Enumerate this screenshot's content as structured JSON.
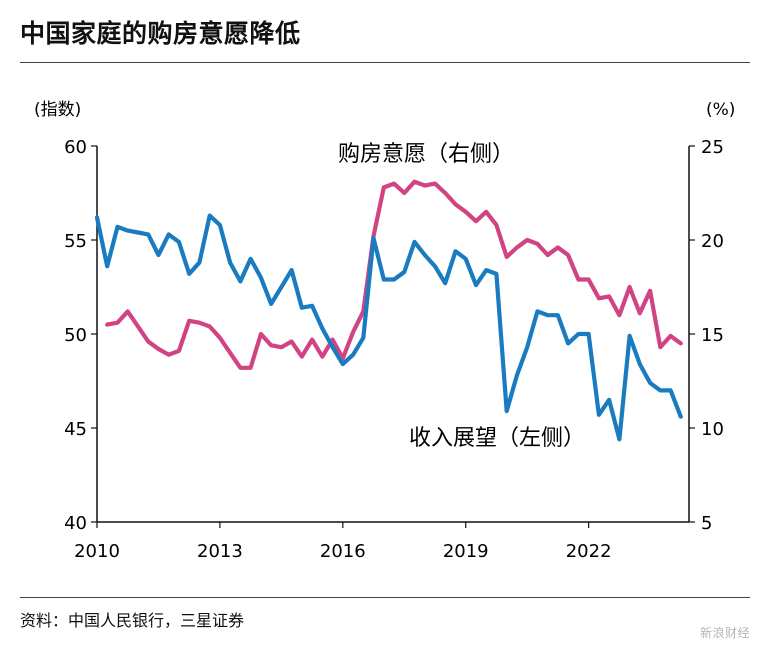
{
  "title": "中国家庭的购房意愿降低",
  "source": "资料：中国人民银行，三星证券",
  "watermark": "新浪财经",
  "chart_data": {
    "type": "line",
    "left_axis": {
      "unit_label": "(指数)",
      "ylim": [
        40,
        60
      ],
      "ticks": [
        "60",
        "55",
        "50",
        "45",
        "40"
      ]
    },
    "right_axis": {
      "unit_label": "(%)",
      "ylim": [
        5,
        25
      ],
      "ticks": [
        "25",
        "20",
        "15",
        "10",
        "5"
      ]
    },
    "x_ticks": [
      "2010",
      "2013",
      "2016",
      "2019",
      "2022"
    ],
    "series": [
      {
        "name": "购房意愿（右侧）",
        "axis": "right",
        "color": "#d14383",
        "points": [
          [
            2010.25,
            15.5
          ],
          [
            2010.5,
            15.6
          ],
          [
            2010.75,
            16.2
          ],
          [
            2011.0,
            15.4
          ],
          [
            2011.25,
            14.6
          ],
          [
            2011.5,
            14.2
          ],
          [
            2011.75,
            13.9
          ],
          [
            2012.0,
            14.1
          ],
          [
            2012.25,
            15.7
          ],
          [
            2012.5,
            15.6
          ],
          [
            2012.75,
            15.4
          ],
          [
            2013.0,
            14.8
          ],
          [
            2013.25,
            14.0
          ],
          [
            2013.5,
            13.2
          ],
          [
            2013.75,
            13.2
          ],
          [
            2014.0,
            15.0
          ],
          [
            2014.25,
            14.4
          ],
          [
            2014.5,
            14.3
          ],
          [
            2014.75,
            14.6
          ],
          [
            2015.0,
            13.8
          ],
          [
            2015.25,
            14.7
          ],
          [
            2015.5,
            13.8
          ],
          [
            2015.75,
            14.7
          ],
          [
            2016.0,
            13.7
          ],
          [
            2016.25,
            15.1
          ],
          [
            2016.5,
            16.2
          ],
          [
            2016.75,
            20.2
          ],
          [
            2017.0,
            22.8
          ],
          [
            2017.25,
            23.0
          ],
          [
            2017.5,
            22.5
          ],
          [
            2017.75,
            23.1
          ],
          [
            2018.0,
            22.9
          ],
          [
            2018.25,
            23.0
          ],
          [
            2018.5,
            22.5
          ],
          [
            2018.75,
            21.9
          ],
          [
            2019.0,
            21.5
          ],
          [
            2019.25,
            21.0
          ],
          [
            2019.5,
            21.5
          ],
          [
            2019.75,
            20.8
          ],
          [
            2020.0,
            19.1
          ],
          [
            2020.25,
            19.6
          ],
          [
            2020.5,
            20.0
          ],
          [
            2020.75,
            19.8
          ],
          [
            2021.0,
            19.2
          ],
          [
            2021.25,
            19.6
          ],
          [
            2021.5,
            19.2
          ],
          [
            2021.75,
            17.9
          ],
          [
            2022.0,
            17.9
          ],
          [
            2022.25,
            16.9
          ],
          [
            2022.5,
            17.0
          ],
          [
            2022.75,
            16.0
          ],
          [
            2023.0,
            17.5
          ],
          [
            2023.25,
            16.1
          ],
          [
            2023.5,
            17.3
          ],
          [
            2023.75,
            14.3
          ],
          [
            2024.0,
            14.9
          ],
          [
            2024.25,
            14.5
          ]
        ]
      },
      {
        "name": "收入展望（左侧）",
        "axis": "left",
        "color": "#1a7cc0",
        "points": [
          [
            2010.0,
            56.2
          ],
          [
            2010.25,
            53.6
          ],
          [
            2010.5,
            55.7
          ],
          [
            2010.75,
            55.5
          ],
          [
            2011.0,
            55.4
          ],
          [
            2011.25,
            55.3
          ],
          [
            2011.5,
            54.2
          ],
          [
            2011.75,
            55.3
          ],
          [
            2012.0,
            54.9
          ],
          [
            2012.25,
            53.2
          ],
          [
            2012.5,
            53.8
          ],
          [
            2012.75,
            56.3
          ],
          [
            2013.0,
            55.8
          ],
          [
            2013.25,
            53.8
          ],
          [
            2013.5,
            52.8
          ],
          [
            2013.75,
            54.0
          ],
          [
            2014.0,
            53.0
          ],
          [
            2014.25,
            51.6
          ],
          [
            2014.5,
            52.5
          ],
          [
            2014.75,
            53.4
          ],
          [
            2015.0,
            51.4
          ],
          [
            2015.25,
            51.5
          ],
          [
            2015.5,
            50.3
          ],
          [
            2015.75,
            49.3
          ],
          [
            2016.0,
            48.4
          ],
          [
            2016.25,
            48.9
          ],
          [
            2016.5,
            49.8
          ],
          [
            2016.75,
            55.1
          ],
          [
            2017.0,
            52.9
          ],
          [
            2017.25,
            52.9
          ],
          [
            2017.5,
            53.3
          ],
          [
            2017.75,
            54.9
          ],
          [
            2018.0,
            54.2
          ],
          [
            2018.25,
            53.6
          ],
          [
            2018.5,
            52.7
          ],
          [
            2018.75,
            54.4
          ],
          [
            2019.0,
            54.0
          ],
          [
            2019.25,
            52.6
          ],
          [
            2019.5,
            53.4
          ],
          [
            2019.75,
            53.2
          ],
          [
            2020.0,
            45.9
          ],
          [
            2020.25,
            47.8
          ],
          [
            2020.5,
            49.3
          ],
          [
            2020.75,
            51.2
          ],
          [
            2021.0,
            51.0
          ],
          [
            2021.25,
            51.0
          ],
          [
            2021.5,
            49.5
          ],
          [
            2021.75,
            50.0
          ],
          [
            2022.0,
            50.0
          ],
          [
            2022.25,
            45.7
          ],
          [
            2022.5,
            46.5
          ],
          [
            2022.75,
            44.4
          ],
          [
            2023.0,
            49.9
          ],
          [
            2023.25,
            48.4
          ],
          [
            2023.5,
            47.4
          ],
          [
            2023.75,
            47.0
          ],
          [
            2024.0,
            47.0
          ],
          [
            2024.25,
            45.6
          ]
        ]
      }
    ]
  }
}
